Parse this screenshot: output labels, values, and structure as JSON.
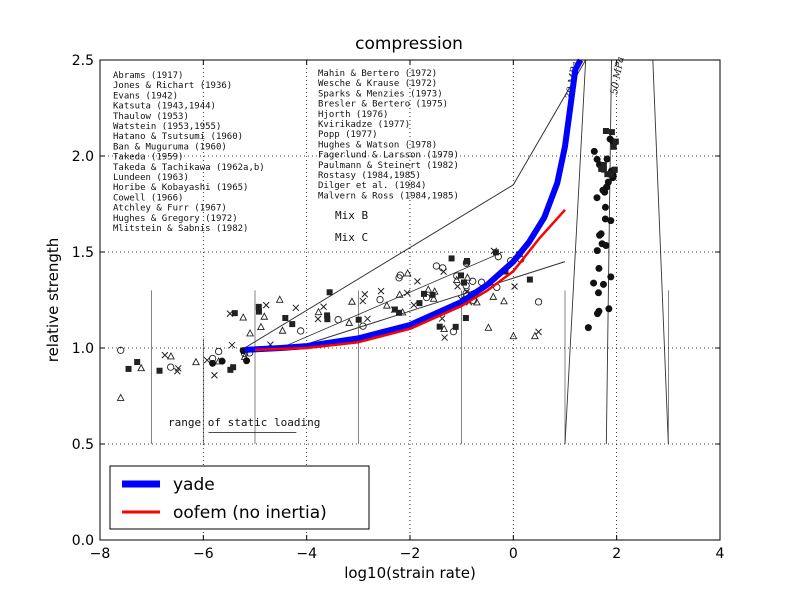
{
  "chart_data": {
    "type": "line",
    "title": "compression",
    "xlabel": "log10(strain rate)",
    "ylabel": "relative strength",
    "xlim": [
      -8,
      4
    ],
    "ylim": [
      0.0,
      2.5
    ],
    "x_ticks": [
      -8,
      -6,
      -4,
      -2,
      0,
      2,
      4
    ],
    "x_tick_labels": [
      "−8",
      "−6",
      "−4",
      "−2",
      "0",
      "2",
      "4"
    ],
    "y_ticks": [
      0.0,
      0.5,
      1.0,
      1.5,
      2.0,
      2.5
    ],
    "y_tick_labels": [
      "0.0",
      "0.5",
      "1.0",
      "1.5",
      "2.0",
      "2.5"
    ],
    "grid": true,
    "legend_position": "lower-left",
    "series": [
      {
        "name": "yade",
        "color": "#0000ff",
        "x": [
          -5.2,
          -4.5,
          -4.0,
          -3.0,
          -2.0,
          -1.0,
          -0.5,
          0.0,
          0.3,
          0.6,
          0.85,
          1.0,
          1.1,
          1.2,
          1.3
        ],
        "y": [
          0.99,
          1.0,
          1.01,
          1.05,
          1.12,
          1.24,
          1.33,
          1.45,
          1.55,
          1.68,
          1.86,
          2.05,
          2.25,
          2.45,
          2.5
        ]
      },
      {
        "name": "oofem (no inertia)",
        "color": "#ff0000",
        "x": [
          -5.0,
          -4.0,
          -3.0,
          -2.0,
          -1.0,
          -0.5,
          0.0,
          0.5,
          1.0
        ],
        "y": [
          0.99,
          1.0,
          1.03,
          1.1,
          1.22,
          1.3,
          1.4,
          1.57,
          1.72
        ]
      }
    ],
    "background_scan_legend_left": [
      "Abrams (1917)",
      "Jones & Richart (1936)",
      "Evans (1942)",
      "Katsuta (1943,1944)",
      "Thaulow (1953)",
      "Watstein (1953,1955)",
      "Hatano & Tsutsumi (1960)",
      "Ban & Muguruma (1960)",
      "Takeda (1959)",
      "Takeda & Tachikawa (1962a,b)",
      "Lundeen (1963)",
      "Horibe & Kobayashi (1965)",
      "Cowell (1966)",
      "Atchley & Furr (1967)",
      "Hughes & Gregory (1972)",
      "Mlitstein & Sabnis (1982)"
    ],
    "background_scan_legend_right": [
      "Mahin & Bertero (1972)",
      "Wesche & Krause (1972)",
      "Sparks & Menzies (1973)",
      "Bresler & Bertero (1975)",
      "Hjorth (1976)",
      "Kvirikadze (1977)",
      "Popp (1977)",
      "Hughes & Watson (1978)",
      "Fagerlund & Larsson (1979)",
      "Paulmann & Steinert (1982)",
      "Rostasy (1984,1985)",
      "Dilger et al. (1984)",
      "Malvern & Ross (1984,1985)"
    ],
    "background_scan_mix_labels": [
      "Mix B",
      "Mix C"
    ],
    "background_scan_annotation": "range of static loading",
    "background_scan_curve_labels": [
      "30 MPa",
      "50 MPa"
    ]
  }
}
